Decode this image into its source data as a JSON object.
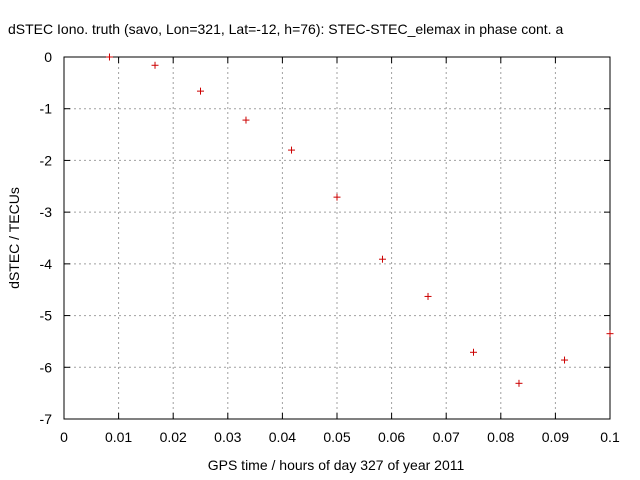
{
  "chart_data": {
    "type": "scatter",
    "title": "dSTEC Iono. truth (savo, Lon=321, Lat=-12, h=76): STEC-STEC_elemax in phase cont. a",
    "xlabel": "GPS time / hours of day 327 of year 2011",
    "ylabel": "dSTEC  / TECUs",
    "xlim": [
      0,
      0.1
    ],
    "ylim": [
      -7,
      0
    ],
    "x_ticks": [
      0,
      0.01,
      0.02,
      0.03,
      0.04,
      0.05,
      0.06,
      0.07,
      0.08,
      0.09,
      0.1
    ],
    "x_tick_labels": [
      "0",
      "0.01",
      "0.02",
      "0.03",
      "0.04",
      "0.05",
      "0.06",
      "0.07",
      "0.08",
      "0.09",
      "0.1"
    ],
    "y_ticks": [
      0,
      -1,
      -2,
      -3,
      -4,
      -5,
      -6,
      -7
    ],
    "y_tick_labels": [
      "0",
      "-1",
      "-2",
      "-3",
      "-4",
      "-5",
      "-6",
      "-7"
    ],
    "grid": true,
    "marker": "+",
    "marker_color": "#cc0000",
    "points": [
      {
        "x": 0.00833,
        "y": 0.0
      },
      {
        "x": 0.01667,
        "y": -0.16
      },
      {
        "x": 0.025,
        "y": -0.66
      },
      {
        "x": 0.03333,
        "y": -1.22
      },
      {
        "x": 0.04167,
        "y": -1.8
      },
      {
        "x": 0.05,
        "y": -2.71
      },
      {
        "x": 0.05833,
        "y": -3.91
      },
      {
        "x": 0.06667,
        "y": -4.63
      },
      {
        "x": 0.075,
        "y": -5.71
      },
      {
        "x": 0.08333,
        "y": -6.31
      },
      {
        "x": 0.09167,
        "y": -5.86
      },
      {
        "x": 0.1,
        "y": -5.35
      }
    ]
  }
}
